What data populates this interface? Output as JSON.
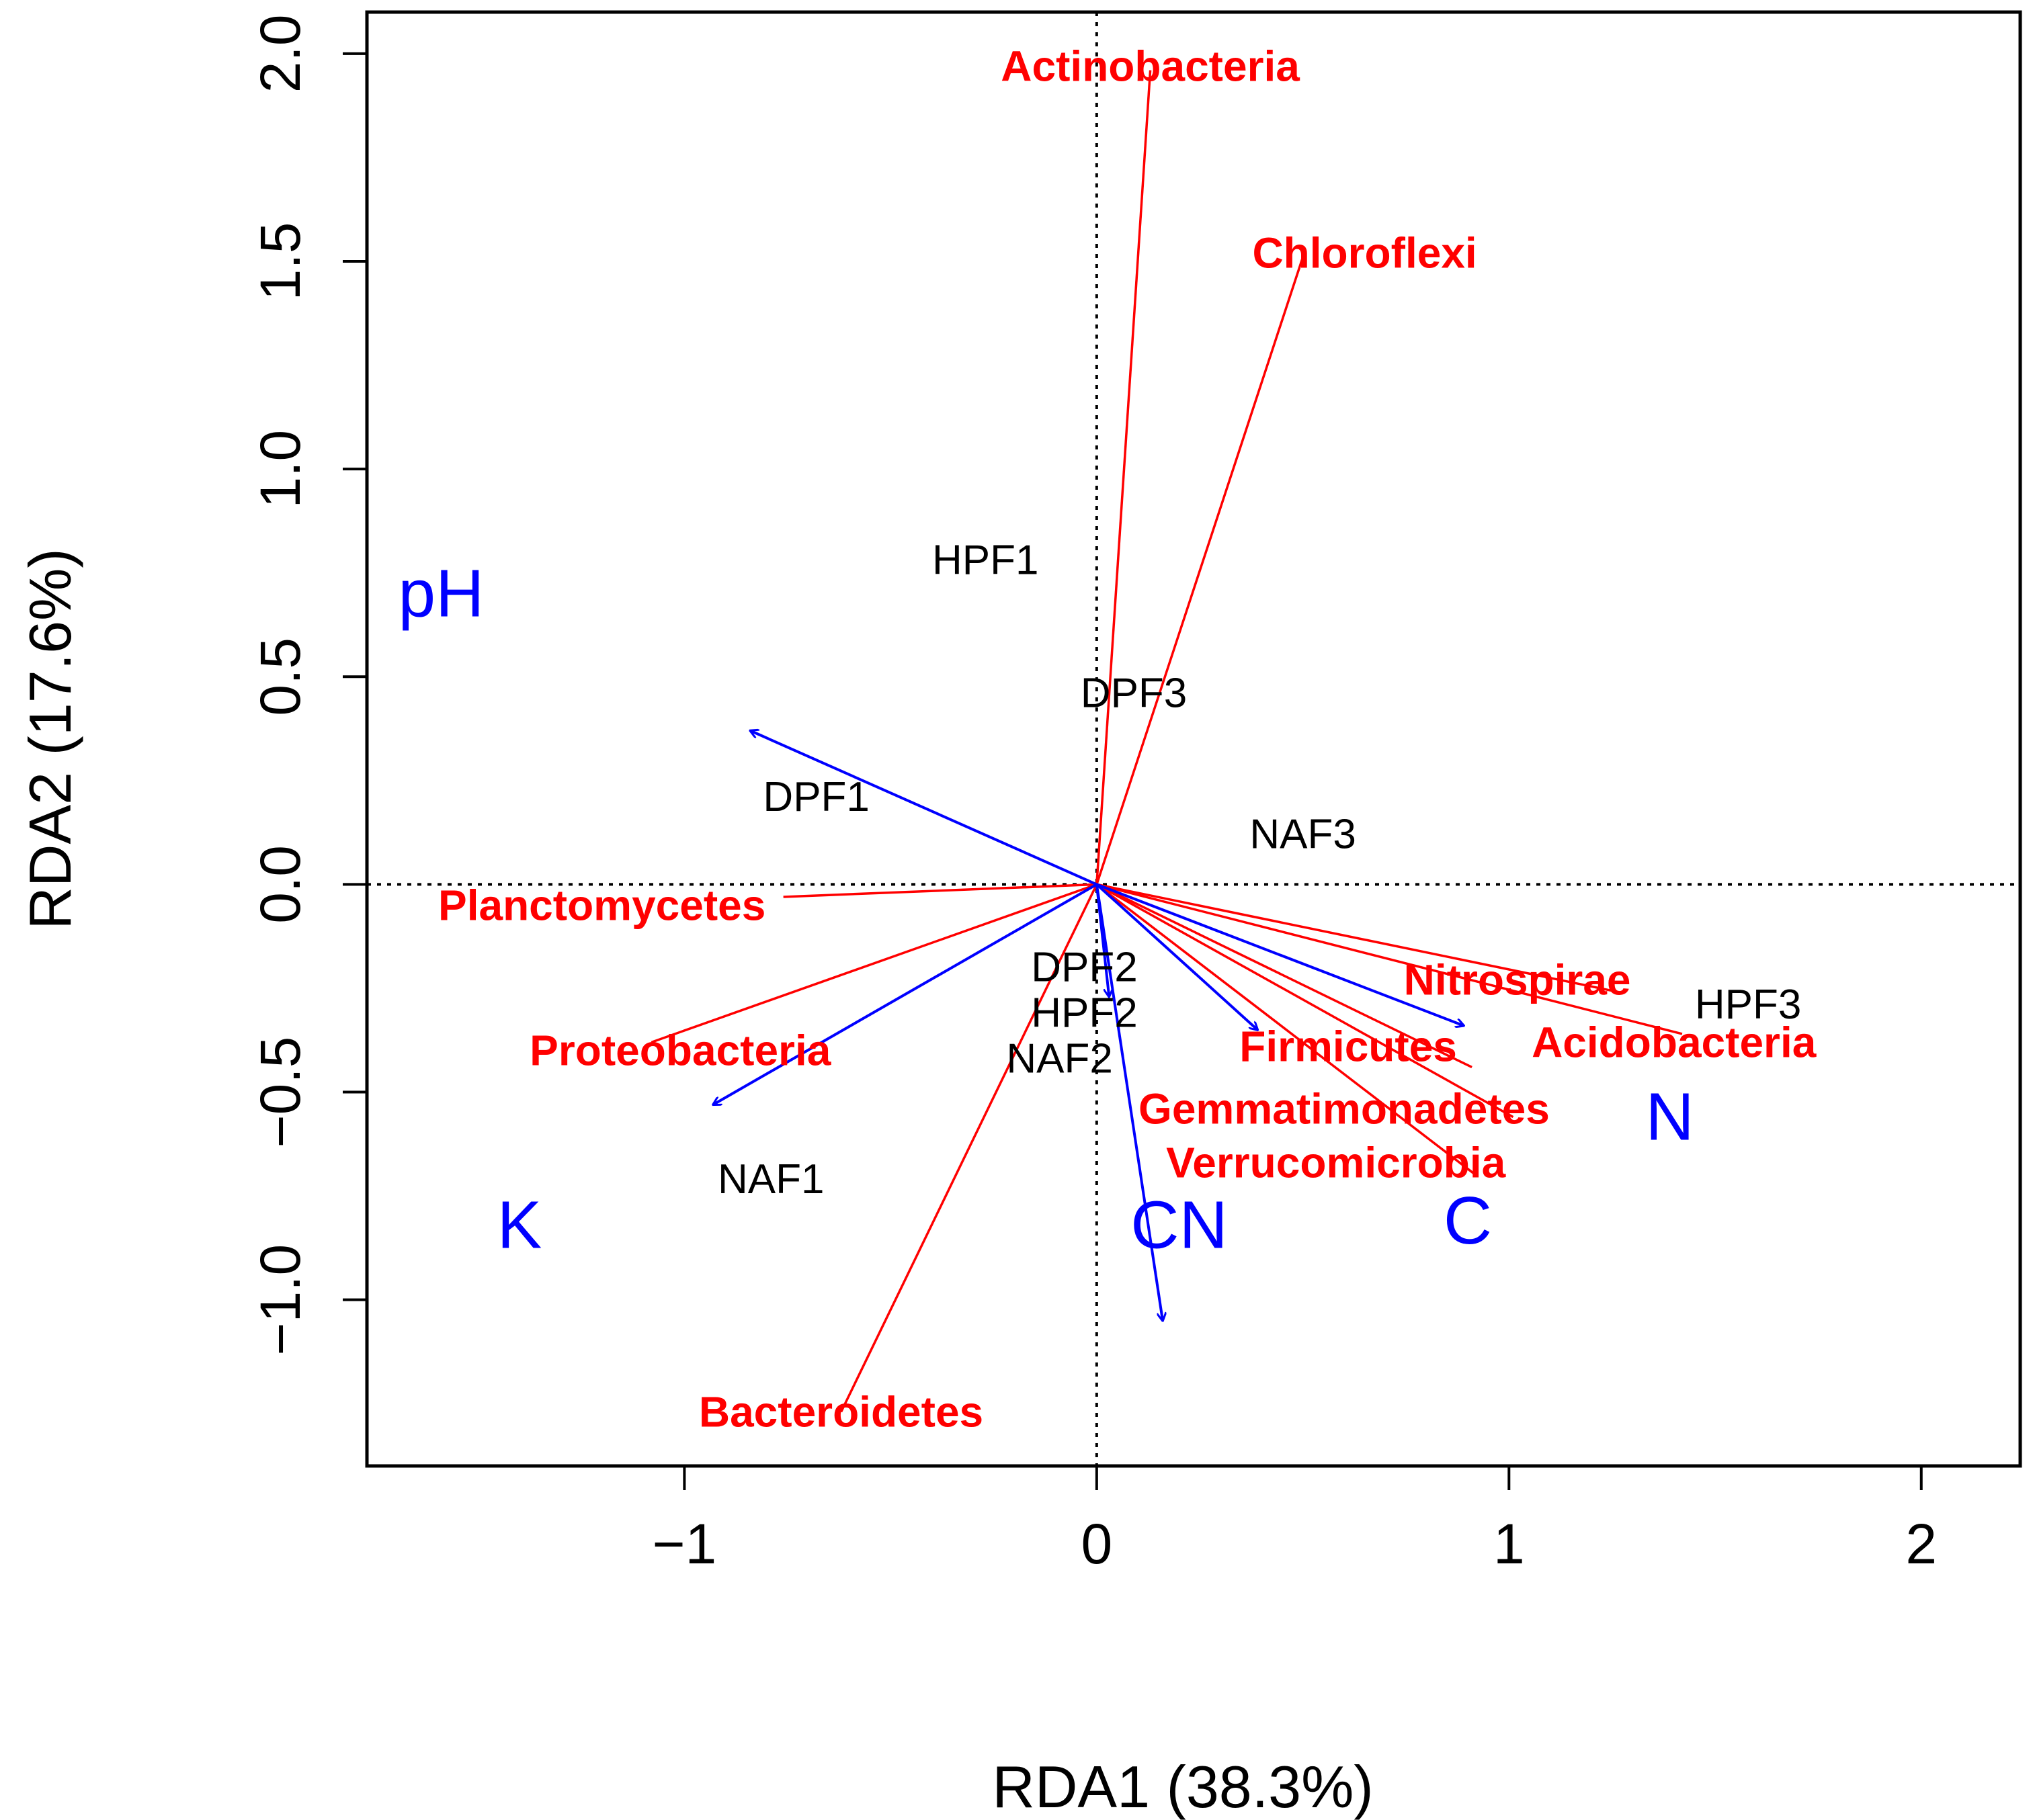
{
  "chart_data": {
    "type": "scatter",
    "subtype": "rda-triplot",
    "title": "",
    "xlabel": "RDA1 (38.3%)",
    "ylabel": "RDA2 (17.6%)",
    "xlim": [
      -1.77,
      2.24
    ],
    "ylim": [
      -1.4,
      2.1
    ],
    "xticks": [
      -1,
      0,
      1,
      2
    ],
    "xtick_labels": [
      "−1",
      "0",
      "1",
      "2"
    ],
    "yticks": [
      -1.0,
      -0.5,
      0.0,
      0.5,
      1.0,
      1.5,
      2.0
    ],
    "ytick_labels": [
      "−1.0",
      "−0.5",
      "0.0",
      "0.5",
      "1.0",
      "1.5",
      "2.0"
    ],
    "grid": false,
    "reference_lines": {
      "x": 0,
      "y": 0,
      "style": "dotted"
    },
    "colors": {
      "phyla": "#ff0000",
      "environment": "#0000ff",
      "sites": "#000000"
    },
    "sites": [
      {
        "label": "HPF1",
        "x": -0.27,
        "y": 0.78
      },
      {
        "label": "DPF3",
        "x": 0.09,
        "y": 0.46
      },
      {
        "label": "DPF1",
        "x": -0.68,
        "y": 0.21
      },
      {
        "label": "NAF3",
        "x": 0.5,
        "y": 0.12
      },
      {
        "label": "DPF2",
        "x": -0.03,
        "y": -0.2
      },
      {
        "label": "HPF2",
        "x": -0.03,
        "y": -0.31
      },
      {
        "label": "NAF2",
        "x": -0.09,
        "y": -0.42
      },
      {
        "label": "HPF3",
        "x": 1.58,
        "y": -0.29
      },
      {
        "label": "NAF1",
        "x": -0.79,
        "y": -0.71
      }
    ],
    "phyla": [
      {
        "label": "Actinobacteria",
        "x": 0.13,
        "y": 1.96,
        "label_x": 0.13,
        "label_y": 1.97
      },
      {
        "label": "Chloroflexi",
        "x": 0.5,
        "y": 1.51,
        "label_x": 0.65,
        "label_y": 1.52
      },
      {
        "label": "Planctomycetes",
        "x": -0.76,
        "y": -0.03,
        "label_x": -1.2,
        "label_y": -0.05
      },
      {
        "label": "Proteobacteria",
        "x": -1.08,
        "y": -0.38,
        "label_x": -1.01,
        "label_y": -0.4
      },
      {
        "label": "Bacteroidetes",
        "x": -0.62,
        "y": -1.27,
        "label_x": -0.62,
        "label_y": -1.27
      },
      {
        "label": "Nitrospirae",
        "x": 1.27,
        "y": -0.26,
        "label_x": 1.02,
        "label_y": -0.23
      },
      {
        "label": "Acidobacteria",
        "x": 1.42,
        "y": -0.36,
        "label_x": 1.4,
        "label_y": -0.38
      },
      {
        "label": "Firmicutes",
        "x": 0.91,
        "y": -0.44,
        "label_x": 0.61,
        "label_y": -0.39
      },
      {
        "label": "Gemmatimonadetes",
        "x": 1.01,
        "y": -0.56,
        "label_x": 0.6,
        "label_y": -0.54
      },
      {
        "label": "Verrucomicrobia",
        "x": 0.92,
        "y": -0.7,
        "label_x": 0.58,
        "label_y": -0.67
      }
    ],
    "environment": [
      {
        "label": "pH",
        "x": -0.84,
        "y": 0.37,
        "label_x": -1.59,
        "label_y": 0.7
      },
      {
        "label": "K",
        "x": -0.93,
        "y": -0.53,
        "label_x": -1.4,
        "label_y": -0.82
      },
      {
        "label": "CN",
        "x": 0.16,
        "y": -1.05,
        "label_x": 0.2,
        "label_y": -0.82
      },
      {
        "label": "C",
        "x": 0.89,
        "y": -0.34,
        "label_x": 0.9,
        "label_y": -0.81
      },
      {
        "label": "N",
        "x": 0.39,
        "y": -0.35,
        "label_x": 1.39,
        "label_y": -0.56
      },
      {
        "label": "",
        "x": 0.03,
        "y": -0.27,
        "label_x": 0.03,
        "label_y": -0.27
      }
    ]
  }
}
